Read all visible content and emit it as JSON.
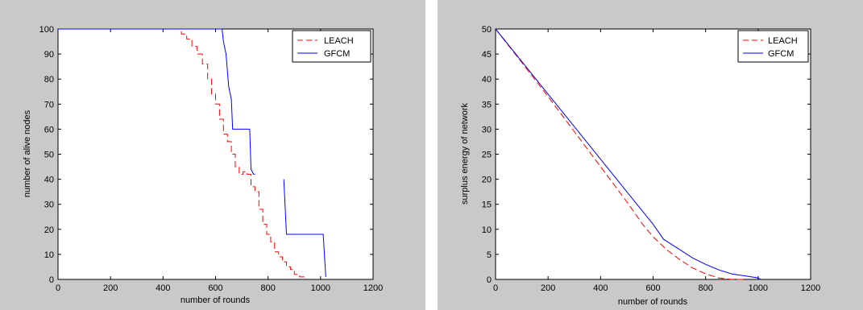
{
  "chart_data": [
    {
      "type": "line",
      "xlabel": "number of rounds",
      "ylabel": "number of alive nodes",
      "xlim": [
        0,
        1200
      ],
      "ylim": [
        0,
        100
      ],
      "xticks": [
        0,
        200,
        400,
        600,
        800,
        1000,
        1200
      ],
      "yticks": [
        0,
        10,
        20,
        30,
        40,
        50,
        60,
        70,
        80,
        90,
        100
      ],
      "grid": false,
      "legend_position": "top-right",
      "series": [
        {
          "name": "LEACH",
          "color": "#ff0000",
          "style": "dashed",
          "step": true,
          "x": [
            0,
            470,
            490,
            510,
            530,
            550,
            570,
            585,
            600,
            615,
            630,
            645,
            660,
            675,
            690,
            705,
            720,
            735,
            750,
            765,
            780,
            795,
            810,
            825,
            840,
            855,
            870,
            885,
            900,
            920,
            940
          ],
          "y": [
            100,
            98,
            96,
            93,
            90,
            86,
            80,
            74,
            70,
            64,
            58,
            55,
            50,
            45,
            42,
            43,
            42,
            37,
            35,
            28,
            22,
            18,
            15,
            11,
            9,
            7,
            5,
            4,
            2,
            1,
            1
          ]
        },
        {
          "name": "GFCM",
          "color": "#0000ff",
          "style": "solid",
          "segments": [
            {
              "x": [
                0,
                625,
                630,
                640,
                650,
                660,
                665,
                700,
                730,
                735,
                745,
                750
              ],
              "y": [
                100,
                100,
                95,
                90,
                77,
                72,
                60,
                60,
                60,
                44,
                42,
                42
              ]
            },
            {
              "x": [
                860,
                870,
                1010,
                1020
              ],
              "y": [
                40,
                18,
                18,
                1
              ]
            }
          ]
        }
      ]
    },
    {
      "type": "line",
      "xlabel": "number of rounds",
      "ylabel": "surplus energy of network",
      "xlim": [
        0,
        1200
      ],
      "ylim": [
        0,
        50
      ],
      "xticks": [
        0,
        200,
        400,
        600,
        800,
        1000,
        1200
      ],
      "yticks": [
        0,
        5,
        10,
        15,
        20,
        25,
        30,
        35,
        40,
        45,
        50
      ],
      "grid": false,
      "legend_position": "top-right",
      "series": [
        {
          "name": "LEACH",
          "color": "#ff0000",
          "style": "dashed",
          "x": [
            0,
            100,
            200,
            300,
            400,
            500,
            560,
            600,
            650,
            700,
            750,
            800,
            850,
            900,
            950
          ],
          "y": [
            50,
            43.3,
            36.5,
            29.5,
            22.5,
            15.5,
            11,
            8.5,
            6,
            4,
            2.3,
            1.1,
            0.3,
            0,
            0
          ]
        },
        {
          "name": "GFCM",
          "color": "#0000ff",
          "style": "solid",
          "x": [
            0,
            100,
            200,
            300,
            400,
            500,
            600,
            640,
            700,
            750,
            800,
            850,
            900,
            950,
            1000,
            1010
          ],
          "y": [
            50,
            43.5,
            37,
            30.5,
            24,
            17.5,
            11,
            8,
            6,
            4.3,
            3,
            1.9,
            1.1,
            0.7,
            0.3,
            0
          ]
        }
      ]
    }
  ]
}
